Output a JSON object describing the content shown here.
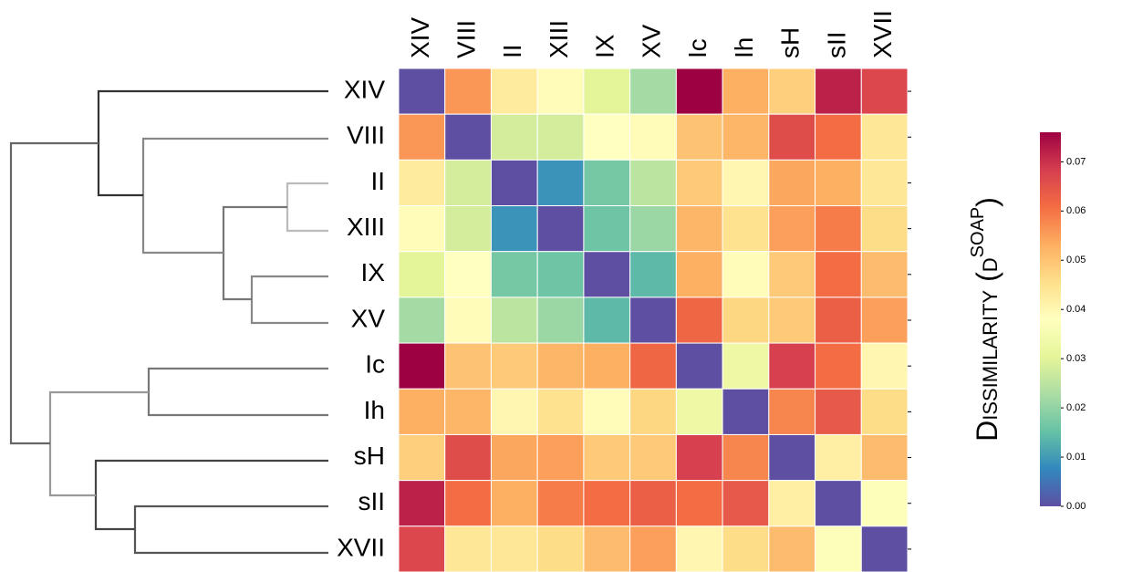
{
  "chart_data": {
    "type": "heatmap",
    "rows": [
      "XIV",
      "VIII",
      "II",
      "XIII",
      "IX",
      "XV",
      "Ic",
      "Ih",
      "sH",
      "sII",
      "XVII"
    ],
    "columns": [
      "XIV",
      "VIII",
      "II",
      "XIII",
      "IX",
      "XV",
      "Ic",
      "Ih",
      "sH",
      "sII",
      "XVII"
    ],
    "values": [
      [
        0,
        0.056,
        0.043,
        0.039,
        0.03,
        0.022,
        0.076,
        0.053,
        0.048,
        0.072,
        0.067
      ],
      [
        0.056,
        0,
        0.028,
        0.028,
        0.038,
        0.039,
        0.05,
        0.052,
        0.066,
        0.061,
        0.044
      ],
      [
        0.043,
        0.028,
        0,
        0.009,
        0.017,
        0.025,
        0.049,
        0.04,
        0.054,
        0.053,
        0.044
      ],
      [
        0.039,
        0.028,
        0.009,
        0,
        0.016,
        0.021,
        0.052,
        0.045,
        0.055,
        0.059,
        0.046
      ],
      [
        0.03,
        0.038,
        0.017,
        0.016,
        0,
        0.014,
        0.053,
        0.039,
        0.049,
        0.061,
        0.051
      ],
      [
        0.022,
        0.039,
        0.025,
        0.021,
        0.014,
        0,
        0.062,
        0.047,
        0.049,
        0.063,
        0.055
      ],
      [
        0.076,
        0.05,
        0.049,
        0.052,
        0.053,
        0.062,
        0,
        0.033,
        0.068,
        0.061,
        0.04
      ],
      [
        0.053,
        0.052,
        0.04,
        0.045,
        0.039,
        0.047,
        0.033,
        0,
        0.058,
        0.064,
        0.046
      ],
      [
        0.048,
        0.066,
        0.054,
        0.055,
        0.049,
        0.049,
        0.068,
        0.058,
        0,
        0.042,
        0.051
      ],
      [
        0.072,
        0.061,
        0.053,
        0.059,
        0.061,
        0.063,
        0.061,
        0.064,
        0.042,
        0,
        0.037
      ],
      [
        0.067,
        0.044,
        0.044,
        0.046,
        0.051,
        0.055,
        0.04,
        0.046,
        0.051,
        0.037,
        0
      ]
    ],
    "cmap": "Spectral_r",
    "zlim": [
      0,
      0.076
    ],
    "zticks": [
      {
        "value": 0,
        "label": "0.00"
      },
      0.01,
      0.02,
      0.03,
      0.04,
      0.05,
      0.06,
      0.07
    ],
    "colorbar_label": {
      "text": "Dissimilarity (d",
      "sup": "SOAP",
      "tail": ")"
    }
  }
}
